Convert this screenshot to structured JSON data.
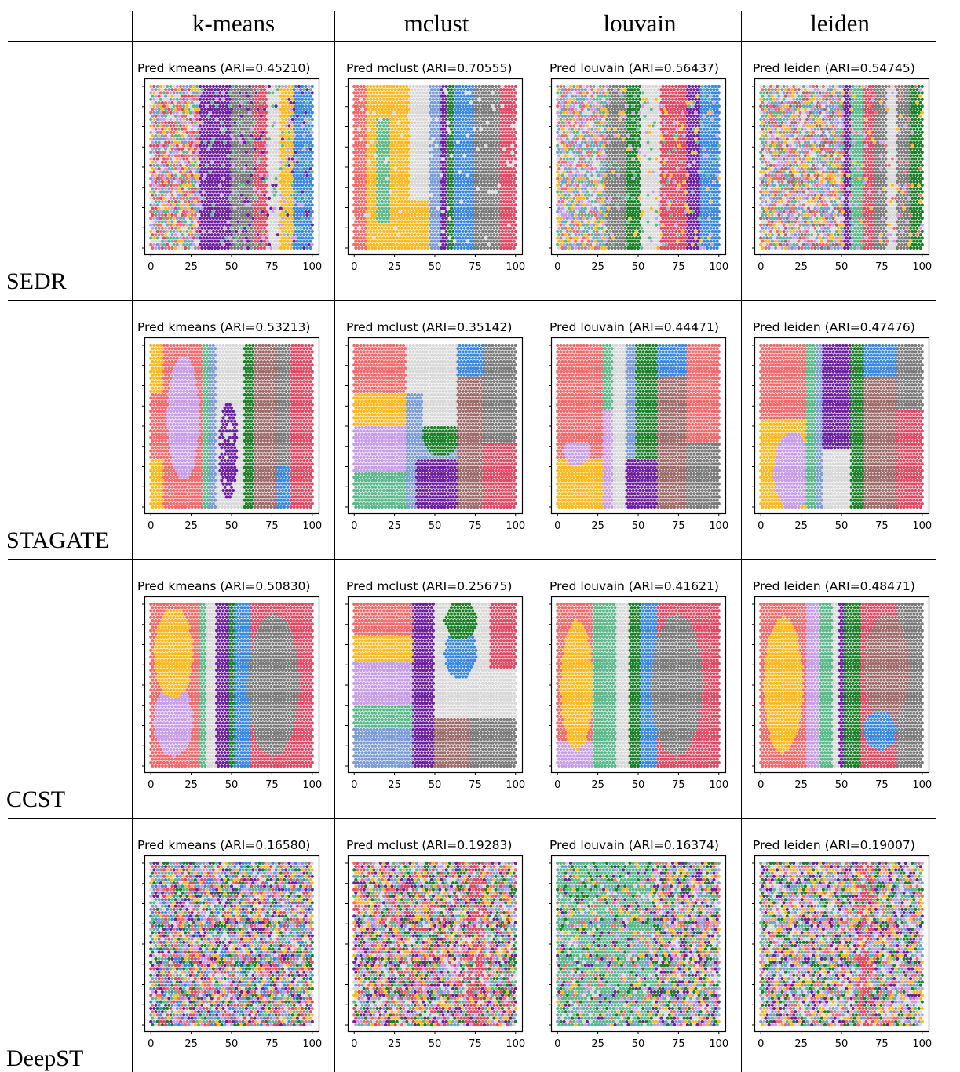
{
  "table": {
    "columns": [
      "k-means",
      "mclust",
      "louvain",
      "leiden"
    ],
    "rows": [
      "SEDR",
      "STAGATE",
      "CCST",
      "DeepST"
    ]
  },
  "palette": {
    "red": "#f06a6c",
    "yellow": "#fbb91f",
    "lavender": "#c79de8",
    "teal": "#5bb88a",
    "steel": "#7b9bd4",
    "purple": "#6c1f9e",
    "green": "#1a7f26",
    "grey": "#d8d8d8",
    "brown": "#9e6b6b",
    "darkgrey": "#7a7a7a",
    "crimson": "#de4a64",
    "blue": "#3a88de"
  },
  "chart_data": [
    {
      "type": "scatter",
      "row": "SEDR",
      "method": "kmeans",
      "title": "Pred kmeans (ARI=0.45210)",
      "x_ticks": [
        "0",
        "25",
        "50",
        "75",
        "100"
      ],
      "xlim": [
        -4,
        104
      ],
      "ARI": 0.4521
    },
    {
      "type": "scatter",
      "row": "SEDR",
      "method": "mclust",
      "title": "Pred mclust (ARI=0.70555)",
      "x_ticks": [
        "0",
        "25",
        "50",
        "75",
        "100"
      ],
      "xlim": [
        -4,
        104
      ],
      "ARI": 0.70555
    },
    {
      "type": "scatter",
      "row": "SEDR",
      "method": "louvain",
      "title": "Pred louvain (ARI=0.56437)",
      "x_ticks": [
        "0",
        "25",
        "50",
        "75",
        "100"
      ],
      "xlim": [
        -4,
        104
      ],
      "ARI": 0.56437
    },
    {
      "type": "scatter",
      "row": "SEDR",
      "method": "leiden",
      "title": "Pred leiden (ARI=0.54745)",
      "x_ticks": [
        "0",
        "25",
        "50",
        "75",
        "100"
      ],
      "xlim": [
        -4,
        104
      ],
      "ARI": 0.54745
    },
    {
      "type": "scatter",
      "row": "STAGATE",
      "method": "kmeans",
      "title": "Pred kmeans (ARI=0.53213)",
      "x_ticks": [
        "0",
        "25",
        "50",
        "75",
        "100"
      ],
      "xlim": [
        -4,
        104
      ],
      "ARI": 0.53213
    },
    {
      "type": "scatter",
      "row": "STAGATE",
      "method": "mclust",
      "title": "Pred mclust (ARI=0.35142)",
      "x_ticks": [
        "0",
        "25",
        "50",
        "75",
        "100"
      ],
      "xlim": [
        -4,
        104
      ],
      "ARI": 0.35142
    },
    {
      "type": "scatter",
      "row": "STAGATE",
      "method": "louvain",
      "title": "Pred louvain (ARI=0.44471)",
      "x_ticks": [
        "0",
        "25",
        "50",
        "75",
        "100"
      ],
      "xlim": [
        -4,
        104
      ],
      "ARI": 0.44471
    },
    {
      "type": "scatter",
      "row": "STAGATE",
      "method": "leiden",
      "title": "Pred leiden (ARI=0.47476)",
      "x_ticks": [
        "0",
        "25",
        "50",
        "75",
        "100"
      ],
      "xlim": [
        -4,
        104
      ],
      "ARI": 0.47476
    },
    {
      "type": "scatter",
      "row": "CCST",
      "method": "kmeans",
      "title": "Pred kmeans (ARI=0.50830)",
      "x_ticks": [
        "0",
        "25",
        "50",
        "75",
        "100"
      ],
      "xlim": [
        -4,
        104
      ],
      "ARI": 0.5083
    },
    {
      "type": "scatter",
      "row": "CCST",
      "method": "mclust",
      "title": "Pred mclust (ARI=0.25675)",
      "x_ticks": [
        "0",
        "25",
        "50",
        "75",
        "100"
      ],
      "xlim": [
        -4,
        104
      ],
      "ARI": 0.25675
    },
    {
      "type": "scatter",
      "row": "CCST",
      "method": "louvain",
      "title": "Pred louvain (ARI=0.41621)",
      "x_ticks": [
        "0",
        "25",
        "50",
        "75",
        "100"
      ],
      "xlim": [
        -4,
        104
      ],
      "ARI": 0.41621
    },
    {
      "type": "scatter",
      "row": "CCST",
      "method": "leiden",
      "title": "Pred leiden (ARI=0.48471)",
      "x_ticks": [
        "0",
        "25",
        "50",
        "75",
        "100"
      ],
      "xlim": [
        -4,
        104
      ],
      "ARI": 0.48471
    },
    {
      "type": "scatter",
      "row": "DeepST",
      "method": "kmeans",
      "title": "Pred kmeans (ARI=0.16580)",
      "x_ticks": [
        "0",
        "25",
        "50",
        "75",
        "100"
      ],
      "xlim": [
        -4,
        104
      ],
      "ARI": 0.1658
    },
    {
      "type": "scatter",
      "row": "DeepST",
      "method": "mclust",
      "title": "Pred mclust (ARI=0.19283)",
      "x_ticks": [
        "0",
        "25",
        "50",
        "75",
        "100"
      ],
      "xlim": [
        -4,
        104
      ],
      "ARI": 0.19283
    },
    {
      "type": "scatter",
      "row": "DeepST",
      "method": "louvain",
      "title": "Pred louvain (ARI=0.16374)",
      "x_ticks": [
        "0",
        "25",
        "50",
        "75",
        "100"
      ],
      "xlim": [
        -4,
        104
      ],
      "ARI": 0.16374
    },
    {
      "type": "scatter",
      "row": "DeepST",
      "method": "leiden",
      "title": "Pred leiden (ARI=0.19007)",
      "x_ticks": [
        "0",
        "25",
        "50",
        "75",
        "100"
      ],
      "xlim": [
        -4,
        104
      ],
      "ARI": 0.19007
    }
  ]
}
